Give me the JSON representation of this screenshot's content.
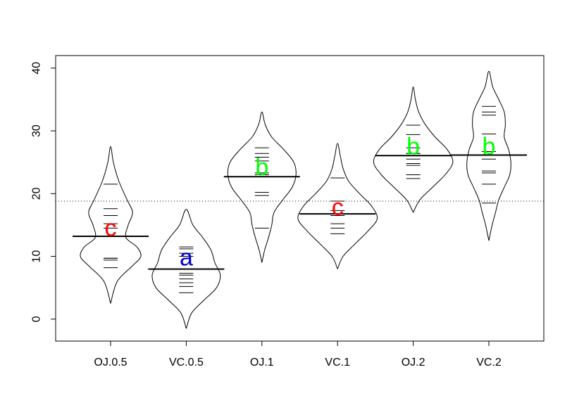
{
  "chart_data": {
    "type": "beanplot",
    "title": "",
    "xlabel": "",
    "ylabel": "",
    "ylim": [
      -3.5,
      42
    ],
    "yticks": [
      0,
      10,
      20,
      30,
      40
    ],
    "ytick_labels": [
      "0",
      "10",
      "20",
      "30",
      "40"
    ],
    "overall_mean": 18.8,
    "overall_line_style": "dotted",
    "categories": [
      "OJ.0.5",
      "VC.0.5",
      "OJ.1",
      "VC.1",
      "OJ.2",
      "VC.2"
    ],
    "beans": [
      {
        "category": "OJ.0.5",
        "letter": "c",
        "letter_color": "#ff0000",
        "letter_y": 14.5,
        "mean": 13.2,
        "values": [
          8.2,
          9.4,
          9.7,
          9.7,
          14.5,
          15.2,
          16.5,
          17.6,
          21.5
        ],
        "profile": [
          [
            2.5,
            0
          ],
          [
            6,
            0.12
          ],
          [
            8.5,
            0.4
          ],
          [
            10,
            0.55
          ],
          [
            11.5,
            0.48
          ],
          [
            13,
            0.28
          ],
          [
            15,
            0.32
          ],
          [
            17,
            0.4
          ],
          [
            19,
            0.3
          ],
          [
            22,
            0.15
          ],
          [
            25,
            0.05
          ],
          [
            27.5,
            0
          ]
        ]
      },
      {
        "category": "VC.0.5",
        "letter": "a",
        "letter_color": "#0000cd",
        "letter_y": 9.8,
        "mean": 7.98,
        "values": [
          4.2,
          5.2,
          5.8,
          6.4,
          7.0,
          7.3,
          8.0,
          10.0,
          10.5,
          11.2,
          11.5
        ],
        "profile": [
          [
            -1.5,
            0
          ],
          [
            1,
            0.1
          ],
          [
            3,
            0.32
          ],
          [
            5,
            0.55
          ],
          [
            7,
            0.62
          ],
          [
            9,
            0.52
          ],
          [
            11,
            0.45
          ],
          [
            13,
            0.3
          ],
          [
            15,
            0.12
          ],
          [
            17.5,
            0
          ]
        ]
      },
      {
        "category": "OJ.1",
        "letter": "b",
        "letter_color": "#00ff00",
        "letter_y": 24.2,
        "mean": 22.7,
        "values": [
          14.5,
          19.7,
          20.2,
          23.0,
          23.3,
          25.2,
          25.8,
          26.4,
          27.3
        ],
        "profile": [
          [
            9,
            0
          ],
          [
            11,
            0.05
          ],
          [
            13,
            0.12
          ],
          [
            15,
            0.18
          ],
          [
            17,
            0.22
          ],
          [
            19,
            0.38
          ],
          [
            21,
            0.55
          ],
          [
            23,
            0.62
          ],
          [
            25,
            0.58
          ],
          [
            27,
            0.4
          ],
          [
            29,
            0.18
          ],
          [
            31,
            0.06
          ],
          [
            33,
            0
          ]
        ]
      },
      {
        "category": "VC.1",
        "letter": "c",
        "letter_color": "#ff0000",
        "letter_y": 17.8,
        "mean": 16.77,
        "values": [
          13.6,
          14.5,
          15.2,
          16.5,
          16.5,
          17.3,
          18.8,
          18.8,
          22.5
        ],
        "profile": [
          [
            8,
            0
          ],
          [
            10,
            0.1
          ],
          [
            12,
            0.32
          ],
          [
            14,
            0.55
          ],
          [
            16,
            0.72
          ],
          [
            18,
            0.62
          ],
          [
            20,
            0.4
          ],
          [
            22,
            0.2
          ],
          [
            24,
            0.1
          ],
          [
            26,
            0.05
          ],
          [
            28,
            0
          ]
        ]
      },
      {
        "category": "OJ.2",
        "letter": "b",
        "letter_color": "#00ff00",
        "letter_y": 27.5,
        "mean": 26.06,
        "values": [
          22.4,
          23.0,
          24.5,
          24.8,
          25.5,
          26.4,
          26.4,
          27.3,
          29.4,
          30.9
        ],
        "profile": [
          [
            17,
            0
          ],
          [
            19,
            0.12
          ],
          [
            21,
            0.35
          ],
          [
            23,
            0.58
          ],
          [
            25,
            0.72
          ],
          [
            27,
            0.62
          ],
          [
            29,
            0.4
          ],
          [
            31,
            0.22
          ],
          [
            33,
            0.1
          ],
          [
            35,
            0.04
          ],
          [
            37,
            0
          ]
        ]
      },
      {
        "category": "VC.2",
        "letter": "b",
        "letter_color": "#00ff00",
        "letter_y": 27.5,
        "mean": 26.14,
        "values": [
          18.5,
          21.5,
          23.3,
          23.6,
          25.5,
          26.7,
          29.5,
          32.5,
          33.0,
          33.9
        ],
        "profile": [
          [
            12.5,
            0
          ],
          [
            15,
            0.06
          ],
          [
            17,
            0.12
          ],
          [
            19,
            0.18
          ],
          [
            21,
            0.28
          ],
          [
            23,
            0.38
          ],
          [
            25,
            0.4
          ],
          [
            27,
            0.36
          ],
          [
            29,
            0.28
          ],
          [
            31,
            0.3
          ],
          [
            33,
            0.28
          ],
          [
            35,
            0.18
          ],
          [
            37,
            0.07
          ],
          [
            39.5,
            0
          ]
        ]
      }
    ]
  }
}
